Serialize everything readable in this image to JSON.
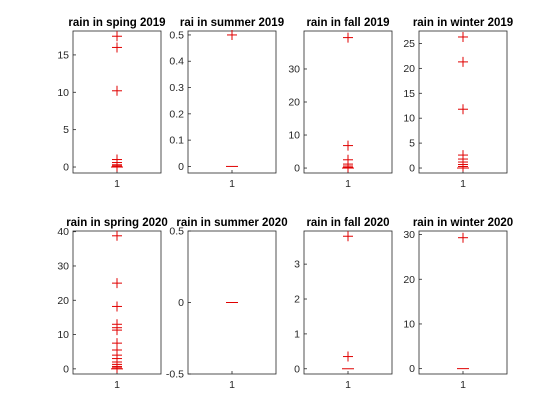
{
  "colors": {
    "marker": "#e00000",
    "axes": "#262626",
    "background": "#ffffff"
  },
  "chart_data": [
    {
      "type": "box",
      "title": "rain in sping 2019",
      "categories": [
        "1"
      ],
      "median": 0,
      "outliers": [
        17.5,
        16.0,
        10.2,
        1.0,
        0.6,
        0.3,
        0.15,
        0.05
      ],
      "ylim": [
        -0.8,
        18.2
      ],
      "yticks": [
        0,
        5,
        10,
        15
      ],
      "ytick_labels": [
        "0",
        "5",
        "10",
        "15"
      ]
    },
    {
      "type": "box",
      "title": "rai in summer 2019",
      "categories": [
        "1"
      ],
      "median": 0,
      "outliers": [
        0.5
      ],
      "ylim": [
        -0.025,
        0.515
      ],
      "yticks": [
        0,
        0.1,
        0.2,
        0.3,
        0.4,
        0.5
      ],
      "ytick_labels": [
        "0",
        "0.1",
        "0.2",
        "0.3",
        "0.4",
        "0.5"
      ]
    },
    {
      "type": "box",
      "title": "rain in fall 2019",
      "categories": [
        "1"
      ],
      "median": 0,
      "outliers": [
        39.5,
        6.8,
        2.5,
        1.2,
        0.6,
        0.2
      ],
      "ylim": [
        -1.5,
        41.5
      ],
      "yticks": [
        0,
        10,
        20,
        30
      ],
      "ytick_labels": [
        "0",
        "10",
        "20",
        "30"
      ]
    },
    {
      "type": "box",
      "title": "rain in winter 2019",
      "categories": [
        "1"
      ],
      "median": 0,
      "outliers": [
        26.3,
        21.3,
        11.8,
        2.6,
        1.8,
        1.2,
        0.7,
        0.3
      ],
      "ylim": [
        -1,
        27.5
      ],
      "yticks": [
        0,
        5,
        10,
        15,
        20,
        25
      ],
      "ytick_labels": [
        "0",
        "5",
        "10",
        "15",
        "20",
        "25"
      ]
    },
    {
      "type": "box",
      "title": "rain in spring 2020",
      "categories": [
        "1"
      ],
      "median": 0,
      "outliers": [
        38.8,
        25.0,
        18.2,
        13.0,
        12.0,
        11.3,
        7.5,
        5.5,
        4.0,
        3.0,
        2.0,
        1.3,
        0.7,
        0.3
      ],
      "ylim": [
        -1.5,
        40.2
      ],
      "yticks": [
        0,
        10,
        20,
        30,
        40
      ],
      "ytick_labels": [
        "0",
        "10",
        "20",
        "30",
        "40"
      ]
    },
    {
      "type": "box",
      "title": "rain in summer 2020",
      "categories": [
        "1"
      ],
      "median": 0,
      "outliers": [],
      "ylim": [
        -0.5,
        0.5
      ],
      "yticks": [
        -0.5,
        0,
        0.5
      ],
      "ytick_labels": [
        "-0.5",
        "0",
        "0.5"
      ]
    },
    {
      "type": "box",
      "title": "rain in fall 2020",
      "categories": [
        "1"
      ],
      "median": 0,
      "outliers": [
        3.8,
        0.35
      ],
      "ylim": [
        -0.15,
        3.95
      ],
      "yticks": [
        0,
        1,
        2,
        3
      ],
      "ytick_labels": [
        "0",
        "1",
        "2",
        "3"
      ]
    },
    {
      "type": "box",
      "title": "rain in winter 2020",
      "categories": [
        "1"
      ],
      "median": 0,
      "outliers": [
        29.3
      ],
      "ylim": [
        -1.2,
        30.8
      ],
      "yticks": [
        0,
        10,
        20,
        30
      ],
      "ytick_labels": [
        "0",
        "10",
        "20",
        "30"
      ]
    }
  ]
}
